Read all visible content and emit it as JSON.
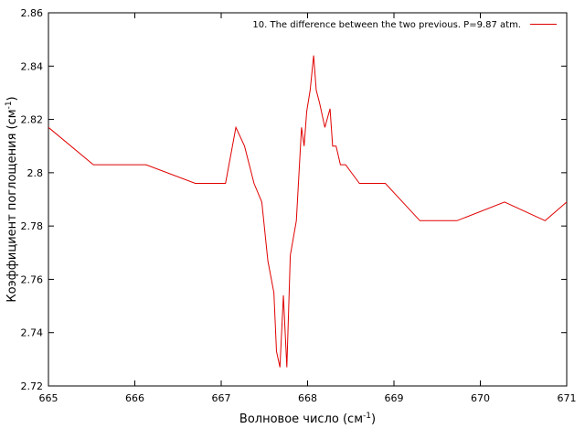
{
  "chart_data": {
    "type": "line",
    "title": "",
    "xlabel": {
      "main": "Волновое число (см",
      "sup": "-1",
      "close": ")"
    },
    "ylabel": {
      "main": "Коэффициент поглощения (см",
      "sup": "-1",
      "close": ")"
    },
    "xlim": [
      665,
      671
    ],
    "ylim": [
      2.72,
      2.86
    ],
    "x_ticks": [
      665,
      666,
      667,
      668,
      669,
      670,
      671
    ],
    "x_tick_labels": [
      "665",
      "666",
      "667",
      "668",
      "669",
      "670",
      "671"
    ],
    "y_ticks": [
      2.72,
      2.74,
      2.76,
      2.78,
      2.8,
      2.82,
      2.84,
      2.86
    ],
    "y_tick_labels": [
      "2.72",
      "2.74",
      "2.76",
      "2.78",
      "2.8",
      "2.82",
      "2.84",
      "2.86"
    ],
    "grid": false,
    "legend_position": "top-right",
    "series": [
      {
        "name": "10. The difference between the two previous. P=9.87 atm.",
        "color": "#e00000",
        "x": [
          665.0,
          665.52,
          666.13,
          666.7,
          667.05,
          667.17,
          667.27,
          667.38,
          667.47,
          667.54,
          667.61,
          667.64,
          667.68,
          667.72,
          667.76,
          667.8,
          667.87,
          667.93,
          667.96,
          667.99,
          668.03,
          668.07,
          668.1,
          668.14,
          668.2,
          668.26,
          668.29,
          668.33,
          668.38,
          668.44,
          668.6,
          668.67,
          668.9,
          669.3,
          669.73,
          670.28,
          670.75,
          671.0
        ],
        "y": [
          2.817,
          2.803,
          2.803,
          2.796,
          2.796,
          2.817,
          2.81,
          2.796,
          2.789,
          2.767,
          2.755,
          2.733,
          2.727,
          2.754,
          2.727,
          2.769,
          2.782,
          2.817,
          2.81,
          2.823,
          2.831,
          2.844,
          2.831,
          2.826,
          2.817,
          2.824,
          2.81,
          2.81,
          2.803,
          2.803,
          2.796,
          2.796,
          2.796,
          2.782,
          2.782,
          2.789,
          2.782,
          2.789
        ]
      }
    ]
  }
}
